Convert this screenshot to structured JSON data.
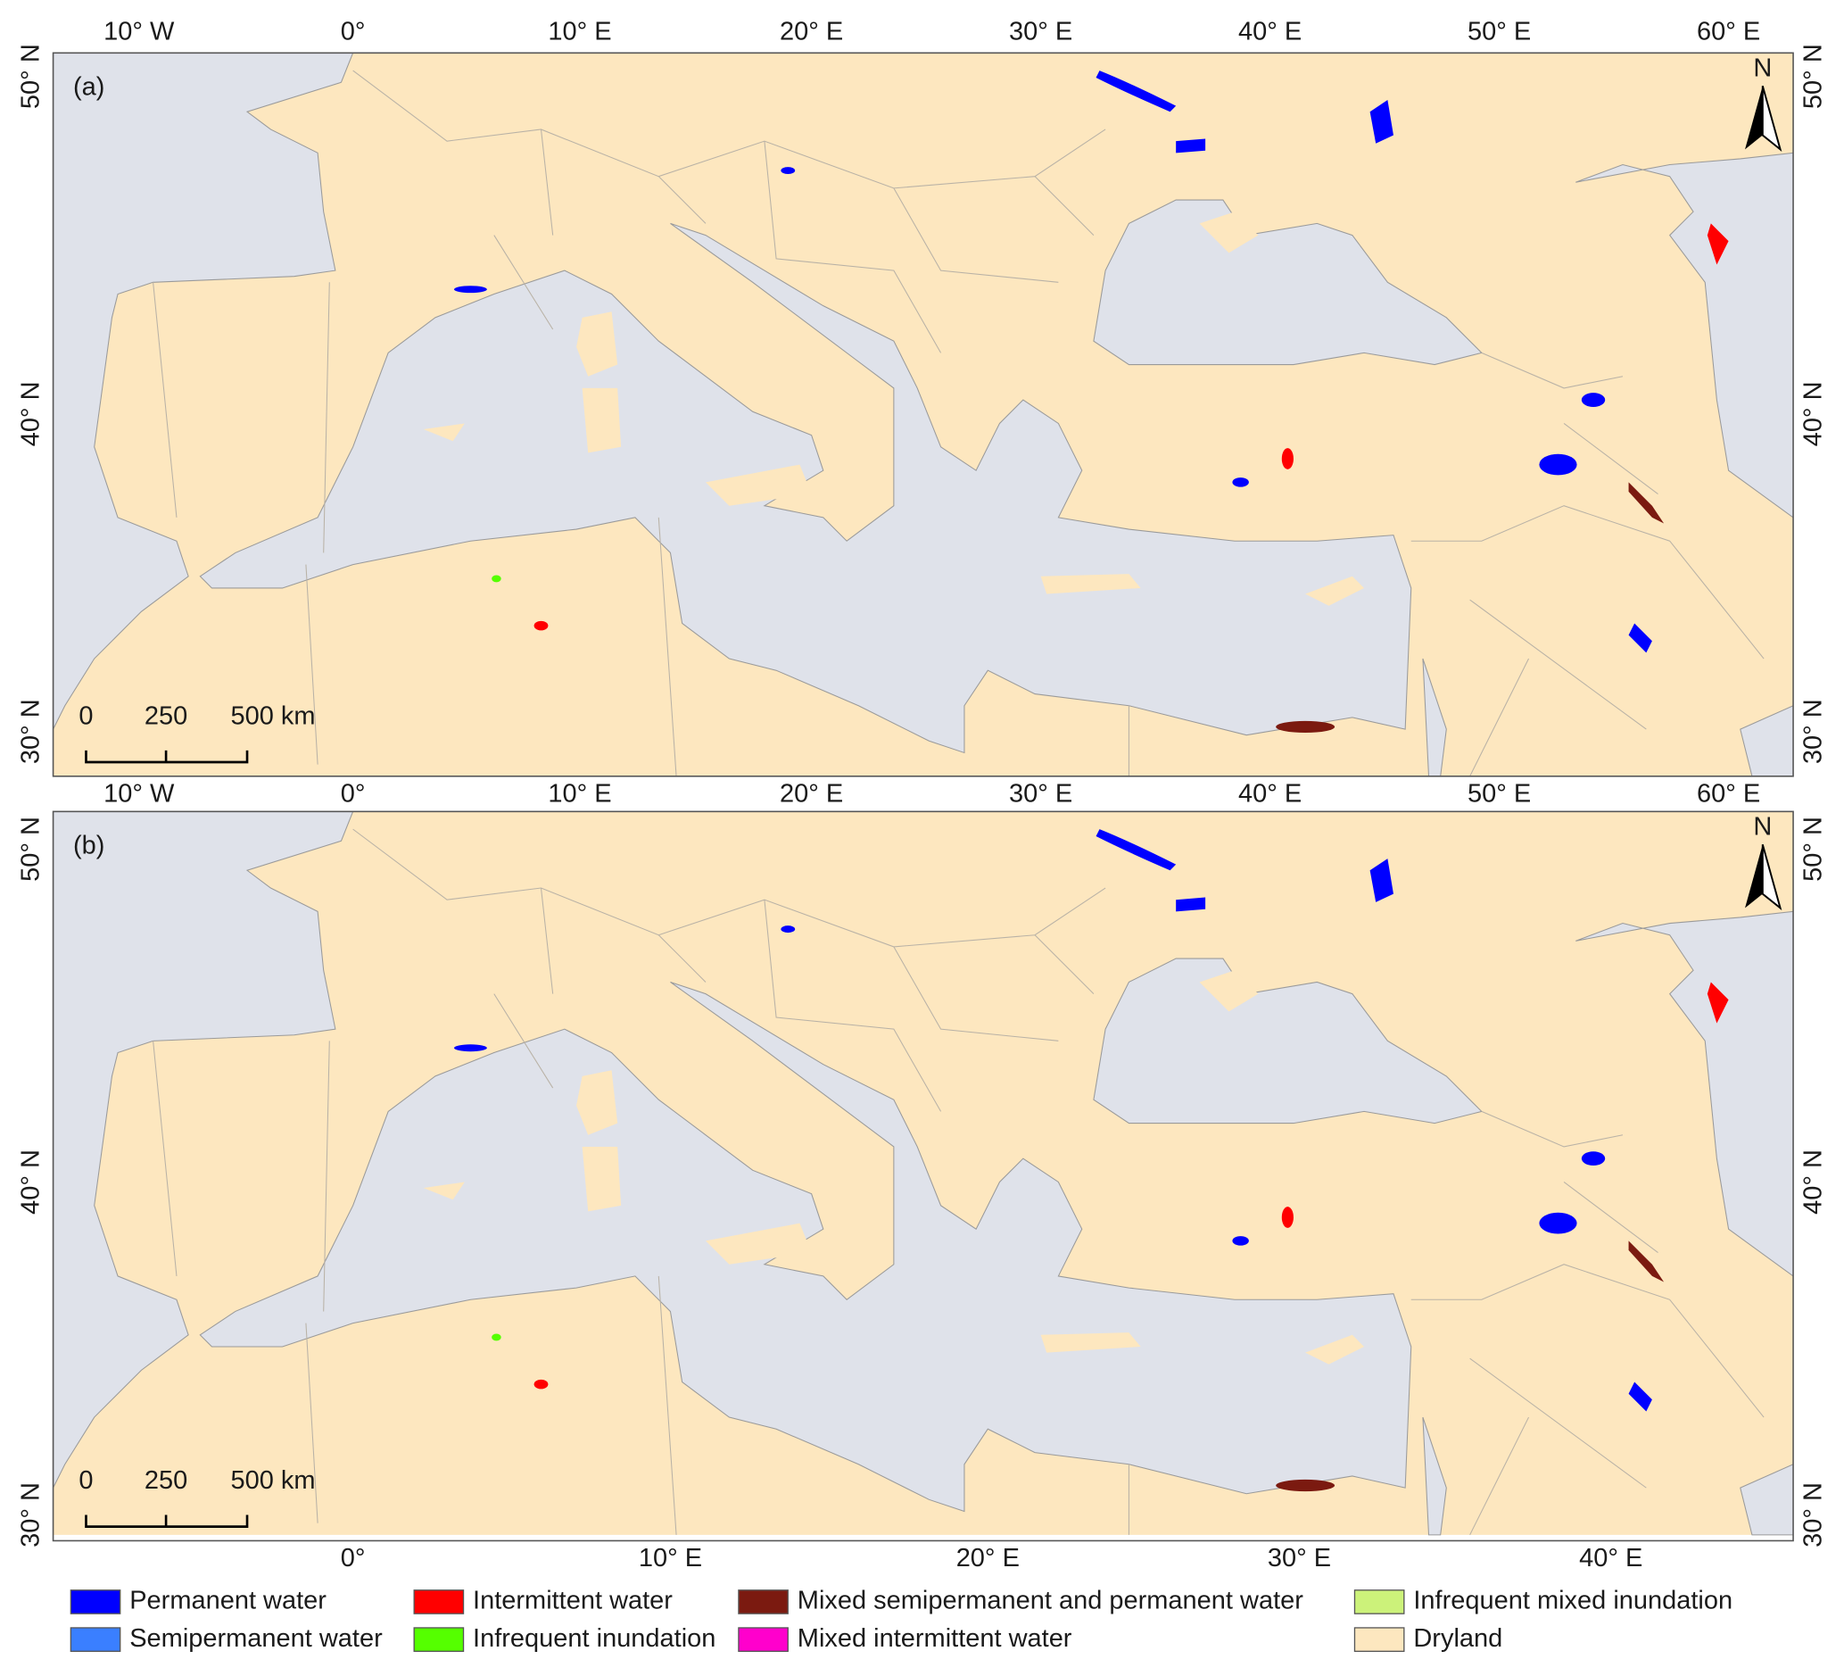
{
  "panels": [
    {
      "label": "(a)",
      "top_ticks": [
        "10° W",
        "0°",
        "10° E",
        "20° E",
        "30° E",
        "40° E",
        "50° E",
        "60° E"
      ],
      "bottom_ticks": [
        "10° W",
        "0°",
        "10° E",
        "20° E",
        "30° E",
        "40° E",
        "50° E",
        "60° E"
      ],
      "left_ticks": [
        "50° N",
        "40° N",
        "30° N"
      ],
      "right_ticks": [
        "50° N",
        "40° N",
        "30° N"
      ],
      "scale_labels": [
        "0",
        "250",
        "500 km"
      ],
      "north": "N"
    },
    {
      "label": "(b)",
      "bottom_ticks": [
        "0°",
        "10° E",
        "20° E",
        "30° E",
        "40° E"
      ],
      "left_ticks": [
        "50° N",
        "40° N",
        "30° N"
      ],
      "right_ticks": [
        "50° N",
        "40° N",
        "30° N"
      ],
      "scale_labels": [
        "0",
        "250",
        "500 km"
      ],
      "north": "N"
    }
  ],
  "legend": [
    {
      "label": "Permanent water",
      "color": "#0000ff"
    },
    {
      "label": "Semipermanent water",
      "color": "#3a7fff"
    },
    {
      "label": "Intermittent water",
      "color": "#ff0000"
    },
    {
      "label": "Infrequent inundation",
      "color": "#55ff00"
    },
    {
      "label": "Mixed semipermanent and permanent water",
      "color": "#7b1a10"
    },
    {
      "label": "Mixed intermittent water",
      "color": "#ff00cc"
    },
    {
      "label": "Infrequent mixed inundation",
      "color": "#ccf27a"
    },
    {
      "label": "Dryland",
      "color": "#fde7bf"
    }
  ]
}
